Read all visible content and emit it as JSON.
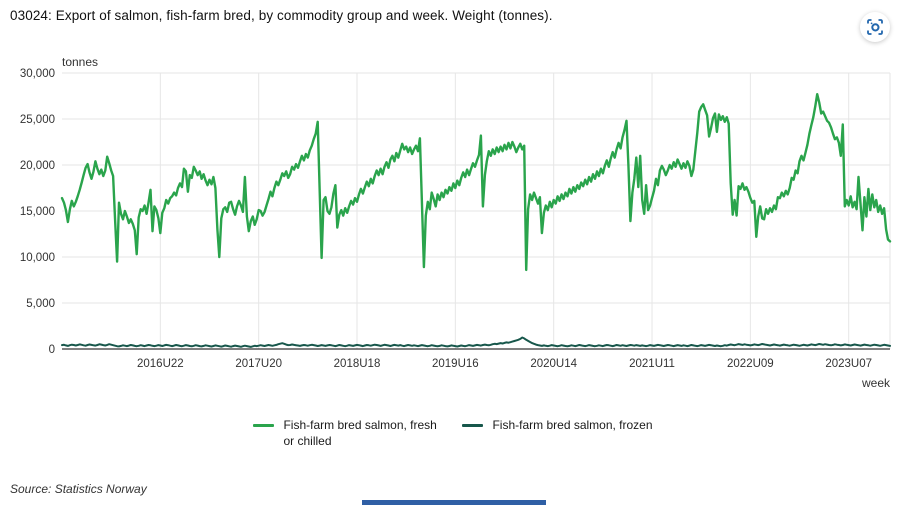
{
  "header": {
    "title": "03024: Export of salmon, fish-farm bred, by commodity group and week. Weight (tonnes).",
    "screenshot_icon": "screen-capture-icon",
    "icon_color": "#2267ae"
  },
  "chart_data": {
    "type": "line",
    "title": "03024: Export of salmon, fish-farm bred, by commodity group and week. Weight (tonnes).",
    "grid": true,
    "legend_position": "bottom",
    "ylabel": "tonnes",
    "xlabel": "week",
    "ylim": [
      0,
      30000
    ],
    "y_tick_step": 5000,
    "y_tick_labels": [
      "0",
      "5,000",
      "10,000",
      "15,000",
      "20,000",
      "25,000",
      "30,000"
    ],
    "x_tick_labels": [
      "2016U22",
      "2017U20",
      "2018U18",
      "2019U16",
      "2020U14",
      "2021U11",
      "2022U09",
      "2023U07"
    ],
    "x_tick_indices": [
      50,
      100,
      150,
      200,
      250,
      300,
      350,
      400
    ],
    "n_points": 422,
    "colors": {
      "grid": "#e6e6e6",
      "axis": "#000000",
      "tick_text": "#333333"
    },
    "series": [
      {
        "name": "Fish-farm bred salmon, fresh or chilled",
        "color": "#2aa44c",
        "values": [
          16400,
          15900,
          15100,
          13800,
          15200,
          16100,
          15500,
          16000,
          16600,
          17300,
          18100,
          18900,
          19700,
          20100,
          19200,
          18500,
          19300,
          20400,
          19600,
          19000,
          19500,
          18800,
          19400,
          20900,
          20200,
          19400,
          18800,
          14000,
          9500,
          15900,
          14700,
          14100,
          15000,
          14400,
          13700,
          14100,
          13600,
          12900,
          10300,
          14300,
          15200,
          15000,
          15600,
          14700,
          15900,
          17300,
          12800,
          15500,
          15100,
          14200,
          12600,
          14800,
          15300,
          16200,
          15800,
          16400,
          16600,
          17000,
          16700,
          17500,
          18000,
          17600,
          19600,
          19300,
          17100,
          18900,
          18600,
          19800,
          19400,
          18900,
          19300,
          18500,
          19000,
          18300,
          17800,
          18400,
          17900,
          18700,
          17500,
          13000,
          10000,
          14200,
          15200,
          15400,
          14900,
          15900,
          16000,
          15200,
          14600,
          15500,
          16100,
          15600,
          14900,
          18700,
          14400,
          12800,
          13900,
          14400,
          13500,
          14100,
          15100,
          15000,
          14500,
          14900,
          15600,
          16300,
          17100,
          16600,
          17500,
          18200,
          17800,
          18400,
          19100,
          18800,
          19300,
          18600,
          19000,
          19800,
          19500,
          20100,
          19700,
          20400,
          21000,
          20500,
          21200,
          20800,
          21600,
          22100,
          22800,
          23400,
          24700,
          17500,
          9900,
          16200,
          16500,
          15000,
          14700,
          15400,
          16900,
          17800,
          13200,
          14600,
          15100,
          14500,
          15300,
          14800,
          15500,
          16100,
          15700,
          16400,
          16000,
          16800,
          17400,
          16900,
          17600,
          18200,
          17700,
          18500,
          18000,
          18800,
          19400,
          18900,
          19600,
          19000,
          19800,
          20300,
          19700,
          20600,
          21000,
          20400,
          21300,
          20800,
          21600,
          22300,
          21700,
          22000,
          21400,
          21900,
          21200,
          21700,
          22100,
          21500,
          22900,
          16000,
          8900,
          14500,
          16000,
          15200,
          17000,
          16300,
          15500,
          16800,
          16200,
          17000,
          16500,
          17300,
          16900,
          17600,
          17200,
          18000,
          17500,
          18300,
          17800,
          18600,
          19200,
          18700,
          19500,
          18900,
          19600,
          20200,
          19800,
          20500,
          21100,
          23200,
          15500,
          18900,
          20400,
          21500,
          21000,
          21700,
          21200,
          21900,
          21400,
          22000,
          21500,
          22200,
          21700,
          22400,
          21800,
          22500,
          22000,
          21400,
          21900,
          22300,
          21700,
          22100,
          8600,
          15200,
          16800,
          16200,
          17000,
          16400,
          15800,
          16500,
          12600,
          14800,
          15600,
          15100,
          16000,
          15400,
          16200,
          15800,
          16600,
          16100,
          16800,
          16300,
          17000,
          16600,
          17400,
          16900,
          17600,
          17100,
          17800,
          17400,
          18100,
          17700,
          18400,
          17900,
          18700,
          18200,
          19000,
          18500,
          19300,
          18800,
          19600,
          19100,
          19900,
          20500,
          19800,
          20700,
          21400,
          20800,
          21700,
          22400,
          21800,
          23000,
          23800,
          24800,
          20000,
          13900,
          17000,
          18500,
          20800,
          17600,
          21000,
          16200,
          14700,
          17800,
          15100,
          15600,
          16400,
          17200,
          18500,
          17800,
          19400,
          19900,
          19500,
          18900,
          19400,
          20000,
          19600,
          20300,
          19800,
          20600,
          20100,
          19600,
          20200,
          19700,
          20400,
          19900,
          18800,
          19500,
          21500,
          23500,
          25800,
          26300,
          26600,
          26000,
          25400,
          23100,
          24000,
          25100,
          25600,
          23600,
          25500,
          24900,
          25300,
          24700,
          25200,
          24500,
          18000,
          14600,
          16200,
          14500,
          17700,
          17400,
          18000,
          17300,
          17600,
          17100,
          16400,
          15900,
          16100,
          12200,
          14400,
          15500,
          14200,
          14100,
          15200,
          14700,
          15300,
          14900,
          15600,
          15200,
          16500,
          16400,
          17000,
          16600,
          17200,
          16800,
          17500,
          18600,
          18400,
          19400,
          19100,
          20400,
          21000,
          20500,
          21300,
          22200,
          23400,
          24300,
          25200,
          26400,
          27700,
          26800,
          25600,
          25800,
          25300,
          24800,
          24600,
          24100,
          23400,
          22800,
          23000,
          22400,
          21000,
          24400,
          15500,
          16200,
          15600,
          16600,
          15400,
          16000,
          15200,
          18700,
          15800,
          12900,
          16500,
          14400,
          17400,
          15100,
          16800,
          15400,
          16200,
          14900,
          15600,
          14700,
          15300,
          13000,
          11900,
          11700
        ]
      },
      {
        "name": "Fish-farm bred salmon, frozen",
        "color": "#17574b",
        "values": [
          420,
          460,
          390,
          340,
          410,
          470,
          430,
          380,
          440,
          500,
          460,
          400,
          360,
          430,
          490,
          450,
          400,
          370,
          440,
          510,
          480,
          420,
          380,
          450,
          520,
          470,
          410,
          360,
          300,
          280,
          340,
          400,
          360,
          310,
          370,
          430,
          390,
          340,
          300,
          350,
          410,
          370,
          320,
          380,
          440,
          400,
          350,
          310,
          360,
          420,
          380,
          330,
          390,
          450,
          410,
          360,
          320,
          370,
          430,
          390,
          340,
          300,
          360,
          420,
          380,
          330,
          290,
          350,
          410,
          370,
          320,
          280,
          340,
          400,
          360,
          310,
          270,
          330,
          390,
          350,
          300,
          260,
          320,
          380,
          340,
          290,
          250,
          310,
          370,
          330,
          280,
          240,
          300,
          360,
          320,
          270,
          230,
          290,
          350,
          310,
          360,
          410,
          370,
          330,
          380,
          430,
          390,
          350,
          400,
          450,
          520,
          580,
          630,
          560,
          480,
          420,
          440,
          490,
          450,
          410,
          380,
          340,
          390,
          440,
          400,
          360,
          410,
          460,
          420,
          380,
          330,
          370,
          420,
          380,
          340,
          390,
          440,
          400,
          360,
          320,
          370,
          430,
          390,
          350,
          300,
          360,
          420,
          380,
          340,
          390,
          450,
          410,
          370,
          320,
          380,
          440,
          400,
          360,
          410,
          470,
          430,
          390,
          340,
          400,
          460,
          420,
          380,
          330,
          390,
          450,
          410,
          370,
          420,
          360,
          320,
          380,
          430,
          390,
          350,
          400,
          360,
          310,
          370,
          420,
          380,
          340,
          300,
          350,
          410,
          370,
          330,
          290,
          340,
          400,
          360,
          320,
          280,
          330,
          390,
          350,
          310,
          270,
          330,
          380,
          340,
          300,
          360,
          420,
          380,
          340,
          390,
          450,
          410,
          370,
          430,
          480,
          440,
          400,
          460,
          520,
          570,
          530,
          590,
          640,
          600,
          660,
          720,
          680,
          740,
          800,
          870,
          930,
          1000,
          1100,
          1250,
          1150,
          1000,
          880,
          760,
          640,
          560,
          480,
          420,
          380,
          340,
          390,
          350,
          310,
          360,
          420,
          380,
          340,
          300,
          350,
          410,
          370,
          330,
          290,
          340,
          400,
          360,
          320,
          370,
          430,
          390,
          350,
          310,
          360,
          420,
          380,
          340,
          300,
          350,
          400,
          360,
          320,
          380,
          440,
          400,
          360,
          320,
          370,
          430,
          390,
          350,
          410,
          370,
          330,
          380,
          440,
          400,
          360,
          420,
          380,
          340,
          390,
          350,
          310,
          360,
          420,
          380,
          340,
          390,
          450,
          410,
          370,
          330,
          380,
          440,
          400,
          360,
          320,
          370,
          420,
          380,
          340,
          400,
          360,
          320,
          370,
          430,
          390,
          350,
          310,
          360,
          420,
          380,
          340,
          390,
          450,
          410,
          370,
          330,
          380,
          340,
          300,
          350,
          410,
          370,
          430,
          490,
          450,
          410,
          470,
          530,
          490,
          450,
          510,
          470,
          430,
          390,
          440,
          500,
          460,
          420,
          480,
          540,
          500,
          460,
          420,
          380,
          430,
          490,
          450,
          410,
          370,
          420,
          480,
          440,
          400,
          360,
          410,
          470,
          430,
          390,
          350,
          400,
          460,
          420,
          380,
          440,
          500,
          460,
          420,
          480,
          540,
          500,
          460,
          520,
          480,
          440,
          400,
          450,
          510,
          470,
          430,
          390,
          440,
          500,
          460,
          420,
          380,
          430,
          490,
          450,
          410,
          370,
          420,
          480,
          440,
          400,
          360,
          410,
          470,
          430,
          390,
          350,
          400,
          460,
          420,
          380,
          340
        ]
      }
    ]
  },
  "legend": {
    "items": [
      {
        "label": "Fish-farm bred salmon, fresh or chilled",
        "color": "#2aa44c"
      },
      {
        "label": "Fish-farm bred salmon, frozen",
        "color": "#17574b"
      }
    ]
  },
  "source": {
    "text": "Source: Statistics Norway"
  },
  "footer": {
    "bar_color": "#2f5fa5"
  }
}
